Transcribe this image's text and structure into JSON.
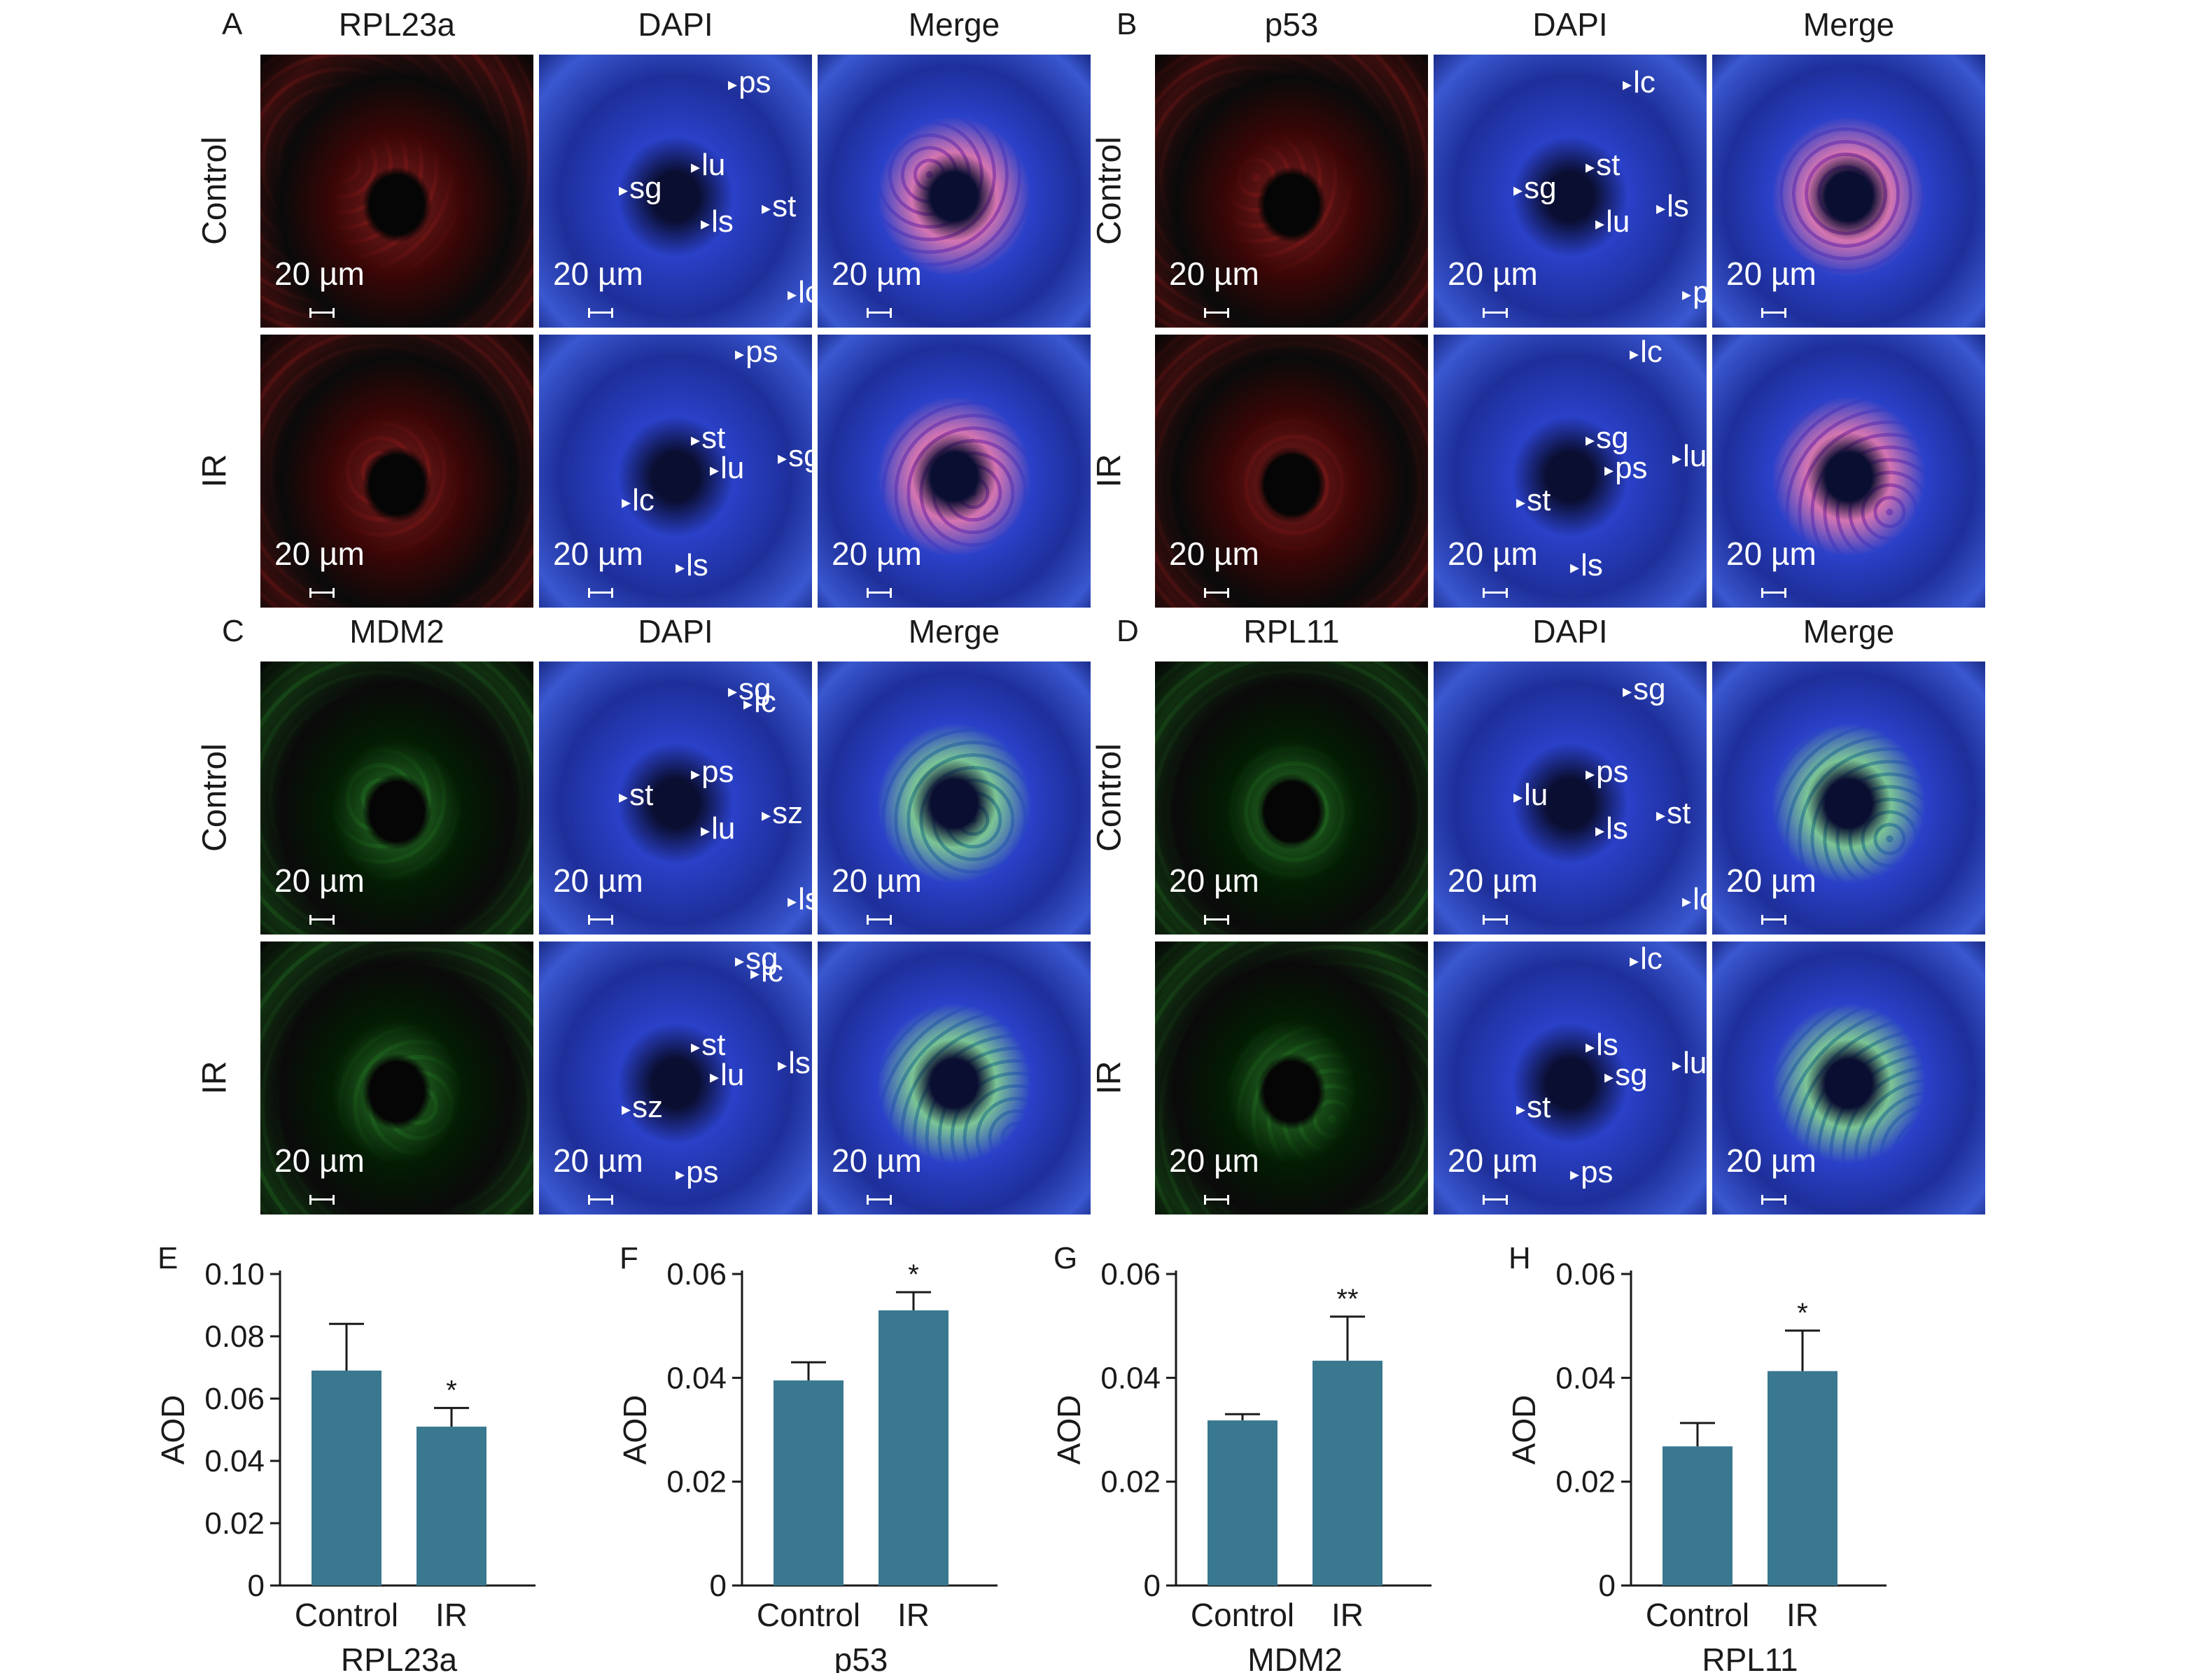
{
  "panels": [
    {
      "letter": "A",
      "stain": "RPL23a",
      "kind": "red",
      "annotations_control": [
        "ps",
        "lu",
        "sg",
        "ls",
        "st",
        "lc"
      ],
      "annotations_ir": [
        "ps",
        "st",
        "lu",
        "sg",
        "lc",
        "ls"
      ]
    },
    {
      "letter": "B",
      "stain": "p53",
      "kind": "red",
      "annotations_control": [
        "lc",
        "st",
        "sg",
        "lu",
        "ls",
        "ps"
      ],
      "annotations_ir": [
        "lc",
        "sg",
        "ps",
        "lu",
        "st",
        "ls"
      ]
    },
    {
      "letter": "C",
      "stain": "MDM2",
      "kind": "green",
      "annotations_control": [
        "sg",
        "ps",
        "st",
        "lu",
        "sz",
        "ls",
        "lc"
      ],
      "annotations_ir": [
        "sg",
        "st",
        "lu",
        "ls",
        "sz",
        "ps",
        "lc"
      ]
    },
    {
      "letter": "D",
      "stain": "RPL11",
      "kind": "green",
      "annotations_control": [
        "sg",
        "ps",
        "lu",
        "ls",
        "st",
        "lc"
      ],
      "annotations_ir": [
        "lc",
        "ls",
        "sg",
        "lu",
        "st",
        "ps"
      ]
    }
  ],
  "columns": {
    "dapi": "DAPI",
    "merge": "Merge"
  },
  "rows": {
    "control": "Control",
    "ir": "IR"
  },
  "scale_text": "20 µm",
  "colors": {
    "bar": "#3a7890",
    "red_stain": "#ff2b2b",
    "green_stain": "#3bd43b",
    "dapi": "#2a40c8"
  },
  "chart_data": [
    {
      "letter": "E",
      "type": "bar",
      "categories": [
        "Control",
        "IR"
      ],
      "values": [
        0.069,
        0.051
      ],
      "errors": [
        0.015,
        0.006
      ],
      "significance": [
        "",
        "*"
      ],
      "ylabel": "AOD",
      "xlabel": "RPL23a",
      "ylim": [
        0,
        0.1
      ],
      "yticks": [
        "0",
        "0.02",
        "0.04",
        "0.06",
        "0.08",
        "0.10"
      ]
    },
    {
      "letter": "F",
      "type": "bar",
      "categories": [
        "Control",
        "IR"
      ],
      "values": [
        0.0395,
        0.053
      ],
      "errors": [
        0.0035,
        0.0035
      ],
      "significance": [
        "",
        "*"
      ],
      "ylabel": "AOD",
      "xlabel": "p53",
      "ylim": [
        0,
        0.06
      ],
      "yticks": [
        "0",
        "0.02",
        "0.04",
        "0.06"
      ]
    },
    {
      "letter": "G",
      "type": "bar",
      "categories": [
        "Control",
        "IR"
      ],
      "values": [
        0.0318,
        0.0433
      ],
      "errors": [
        0.0012,
        0.0085
      ],
      "significance": [
        "",
        "**"
      ],
      "ylabel": "AOD",
      "xlabel": "MDM2",
      "ylim": [
        0,
        0.06
      ],
      "yticks": [
        "0",
        "0.02",
        "0.04",
        "0.06"
      ]
    },
    {
      "letter": "H",
      "type": "bar",
      "categories": [
        "Control",
        "IR"
      ],
      "values": [
        0.0268,
        0.0413
      ],
      "errors": [
        0.0045,
        0.0078
      ],
      "significance": [
        "",
        "*"
      ],
      "ylabel": "AOD",
      "xlabel": "RPL11",
      "ylim": [
        0,
        0.06
      ],
      "yticks": [
        "0",
        "0.02",
        "0.04",
        "0.06"
      ]
    }
  ]
}
